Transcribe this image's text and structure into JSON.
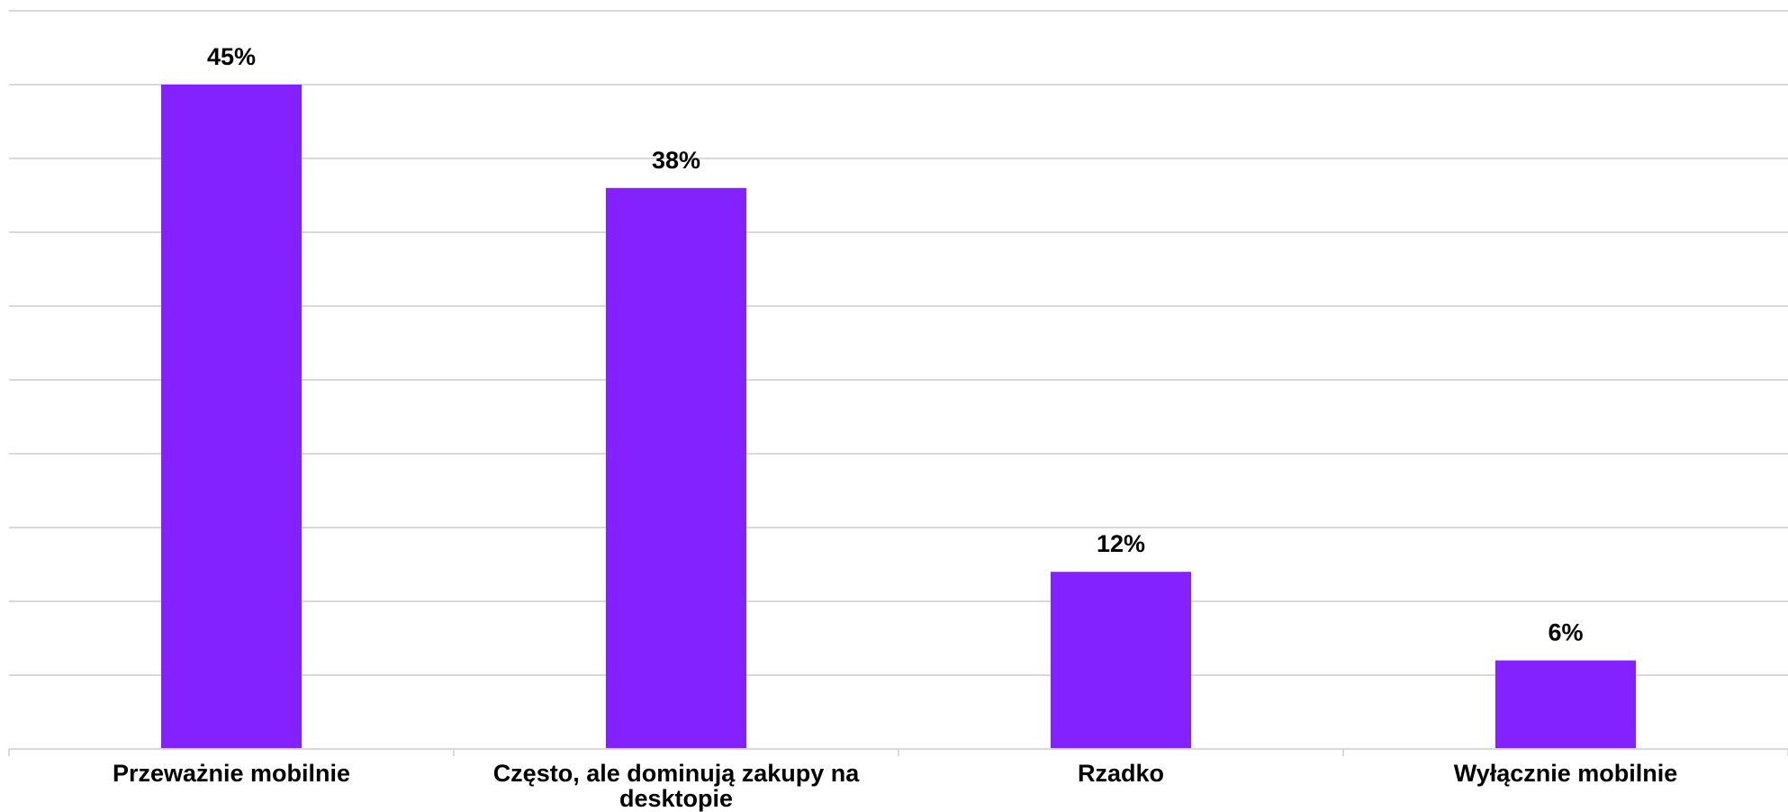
{
  "chart_data": {
    "type": "bar",
    "categories": [
      "Przeważnie mobilnie",
      "Często, ale dominują zakupy na desktopie",
      "Rzadko",
      "Wyłącznie mobilnie"
    ],
    "category_lines": [
      [
        "Przeważnie mobilnie"
      ],
      [
        "Często, ale dominują zakupy na",
        "desktopie"
      ],
      [
        "Rzadko"
      ],
      [
        "Wyłącznie mobilnie"
      ]
    ],
    "values": [
      45,
      38,
      12,
      6
    ],
    "data_labels": [
      "45%",
      "38%",
      "12%",
      "6%"
    ],
    "value_unit": "%",
    "ylim": [
      0,
      50
    ],
    "y_gridline_step": 5,
    "grid": true,
    "legend": "none",
    "title": "",
    "xlabel": "",
    "ylabel": "",
    "colors": {
      "bar": "#8422ff",
      "grid": "#d9d9d9",
      "text": "#000000"
    }
  }
}
